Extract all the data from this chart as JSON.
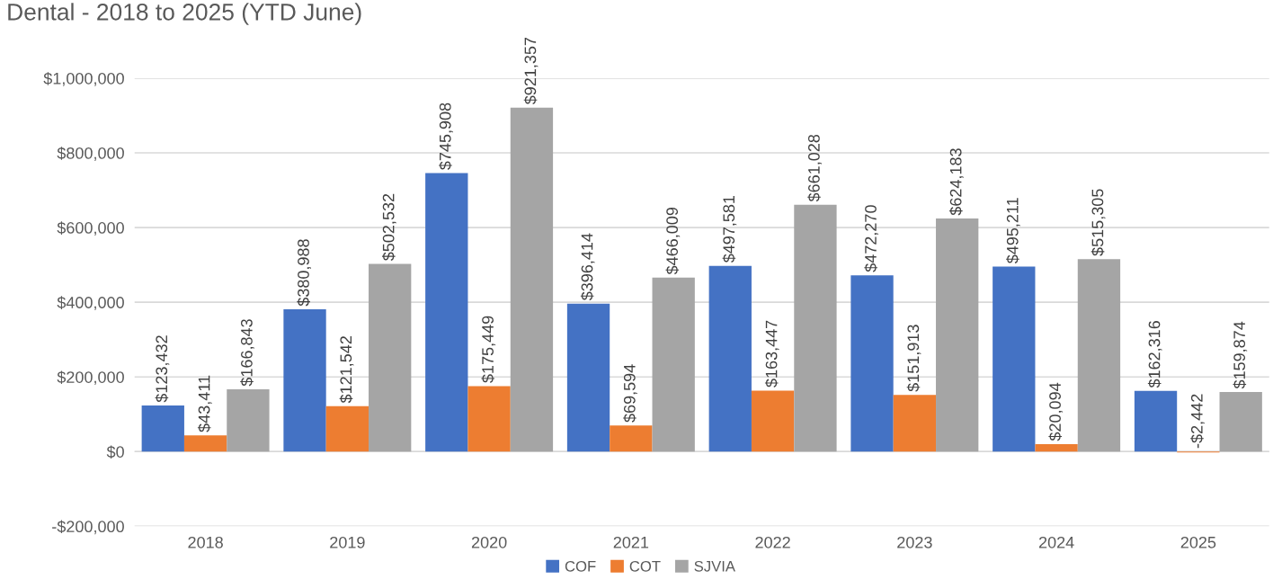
{
  "chart_data": {
    "type": "bar",
    "title": "Dental - 2018 to 2025 (YTD June)",
    "categories": [
      "2018",
      "2019",
      "2020",
      "2021",
      "2022",
      "2023",
      "2024",
      "2025"
    ],
    "series": [
      {
        "name": "COF",
        "color": "#4472c4",
        "values": [
          123432,
          380988,
          745908,
          396414,
          497581,
          472270,
          495211,
          162316
        ],
        "value_labels": [
          "$123,432",
          "$380,988",
          "$745,908",
          "$396,414",
          "$497,581",
          "$472,270",
          "$495,211",
          "$162,316"
        ]
      },
      {
        "name": "COT",
        "color": "#ed7d31",
        "values": [
          43411,
          121542,
          175449,
          69594,
          163447,
          151913,
          20094,
          -2442
        ],
        "value_labels": [
          "$43,411",
          "$121,542",
          "$175,449",
          "$69,594",
          "$163,447",
          "$151,913",
          "$20,094",
          "-$2,442"
        ]
      },
      {
        "name": "SJVIA",
        "color": "#a5a5a5",
        "values": [
          166843,
          502532,
          921357,
          466009,
          661028,
          624183,
          515305,
          159874
        ],
        "value_labels": [
          "$166,843",
          "$502,532",
          "$921,357",
          "$466,009",
          "$661,028",
          "$624,183",
          "$515,305",
          "$159,874"
        ]
      }
    ],
    "ylim": [
      -200000,
      1000000
    ],
    "yticks": [
      {
        "value": -200000,
        "label": "-$200,000"
      },
      {
        "value": 0,
        "label": "$0"
      },
      {
        "value": 200000,
        "label": "$200,000"
      },
      {
        "value": 400000,
        "label": "$400,000"
      },
      {
        "value": 600000,
        "label": "$600,000"
      },
      {
        "value": 800000,
        "label": "$800,000"
      },
      {
        "value": 1000000,
        "label": "$1,000,000"
      }
    ],
    "grid": "y",
    "legend": "bottom"
  }
}
